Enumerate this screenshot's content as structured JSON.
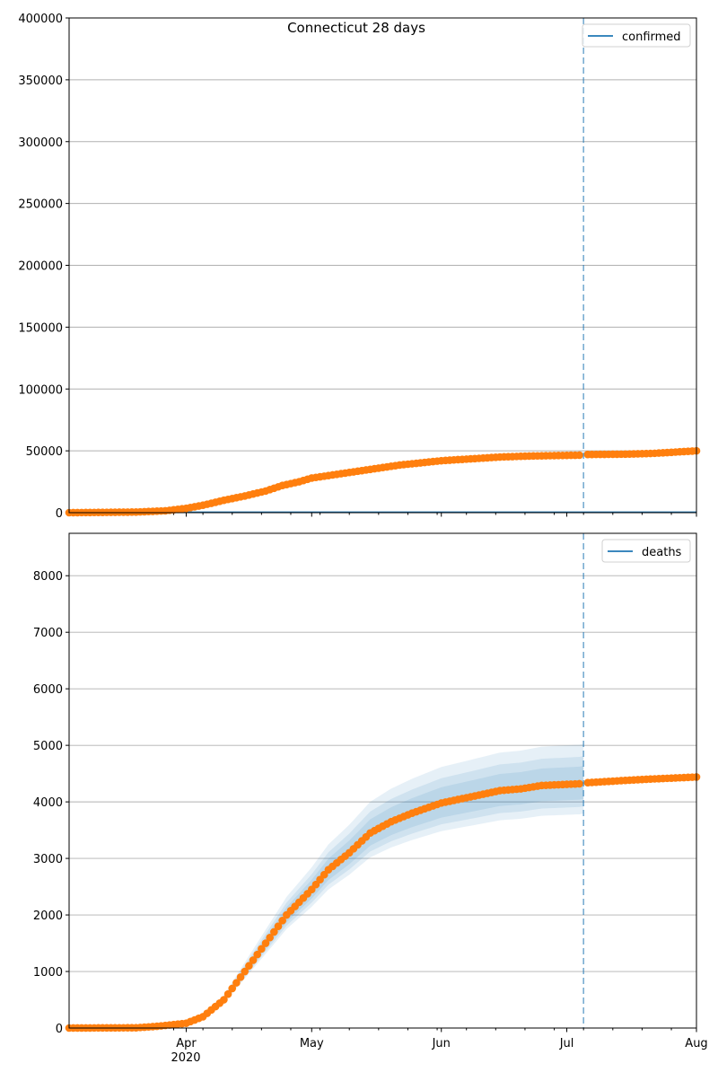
{
  "chart_data": [
    {
      "type": "scatter",
      "title": "Connecticut 28 days",
      "legend": {
        "label": "confirmed",
        "placement": "top-right"
      },
      "x_start": "2020-03-04",
      "x_end": "2020-08-01",
      "forecast_line_date": "2020-07-05",
      "ylim": [
        0,
        400000
      ],
      "yticks": [
        0,
        50000,
        100000,
        150000,
        200000,
        250000,
        300000,
        350000,
        400000
      ],
      "grid": true,
      "observed_keypoints": [
        [
          "2020-03-04",
          0
        ],
        [
          "2020-03-20",
          500
        ],
        [
          "2020-03-27",
          1500
        ],
        [
          "2020-04-01",
          3500
        ],
        [
          "2020-04-05",
          6000
        ],
        [
          "2020-04-10",
          10000
        ],
        [
          "2020-04-15",
          13500
        ],
        [
          "2020-04-20",
          17500
        ],
        [
          "2020-04-24",
          22000
        ],
        [
          "2020-04-28",
          25000
        ],
        [
          "2020-05-01",
          28000
        ],
        [
          "2020-05-08",
          31500
        ],
        [
          "2020-05-15",
          35000
        ],
        [
          "2020-05-22",
          38500
        ],
        [
          "2020-06-01",
          42000
        ],
        [
          "2020-06-08",
          43500
        ],
        [
          "2020-06-15",
          45000
        ],
        [
          "2020-06-22",
          45800
        ],
        [
          "2020-07-04",
          46500
        ],
        [
          "2020-07-05",
          47000
        ],
        [
          "2020-07-15",
          47300
        ],
        [
          "2020-07-22",
          48000
        ],
        [
          "2020-08-01",
          50000
        ]
      ],
      "model_line": [
        [
          "2020-03-04",
          0
        ],
        [
          "2020-08-01",
          0
        ]
      ]
    },
    {
      "type": "scatter",
      "legend": {
        "label": "deaths",
        "placement": "top-right"
      },
      "x_start": "2020-03-04",
      "x_end": "2020-08-01",
      "forecast_line_date": "2020-07-05",
      "ylim": [
        0,
        8750
      ],
      "yticks": [
        0,
        1000,
        2000,
        3000,
        4000,
        5000,
        6000,
        7000,
        8000
      ],
      "xticks": [
        "Apr",
        "May",
        "Jun",
        "Jul",
        "Aug"
      ],
      "xtick_dates": [
        "2020-04-01",
        "2020-05-01",
        "2020-06-01",
        "2020-07-01",
        "2020-08-01"
      ],
      "x_year_label": "2020",
      "grid": true,
      "observed_keypoints": [
        [
          "2020-03-04",
          0
        ],
        [
          "2020-03-20",
          5
        ],
        [
          "2020-03-25",
          30
        ],
        [
          "2020-04-01",
          85
        ],
        [
          "2020-04-05",
          200
        ],
        [
          "2020-04-10",
          500
        ],
        [
          "2020-04-15",
          1000
        ],
        [
          "2020-04-20",
          1500
        ],
        [
          "2020-04-25",
          2000
        ],
        [
          "2020-05-01",
          2450
        ],
        [
          "2020-05-05",
          2800
        ],
        [
          "2020-05-10",
          3100
        ],
        [
          "2020-05-15",
          3450
        ],
        [
          "2020-05-20",
          3650
        ],
        [
          "2020-05-25",
          3800
        ],
        [
          "2020-06-01",
          3980
        ],
        [
          "2020-06-10",
          4120
        ],
        [
          "2020-06-15",
          4200
        ],
        [
          "2020-06-20",
          4230
        ],
        [
          "2020-06-25",
          4290
        ],
        [
          "2020-07-04",
          4320
        ],
        [
          "2020-07-05",
          4335
        ],
        [
          "2020-07-15",
          4380
        ],
        [
          "2020-07-20",
          4400
        ],
        [
          "2020-08-01",
          4440
        ]
      ],
      "model_median_end": "2020-07-05",
      "bands": [
        {
          "name": "outer",
          "low_factor": 0.875,
          "high_factor": 1.16
        },
        {
          "name": "middle",
          "low_factor": 0.905,
          "high_factor": 1.11
        },
        {
          "name": "inner",
          "low_factor": 0.935,
          "high_factor": 1.07
        }
      ]
    }
  ],
  "colors": {
    "observed": "#ff7f0e",
    "model": "#1f77b4",
    "grid": "#b0b0b0"
  }
}
